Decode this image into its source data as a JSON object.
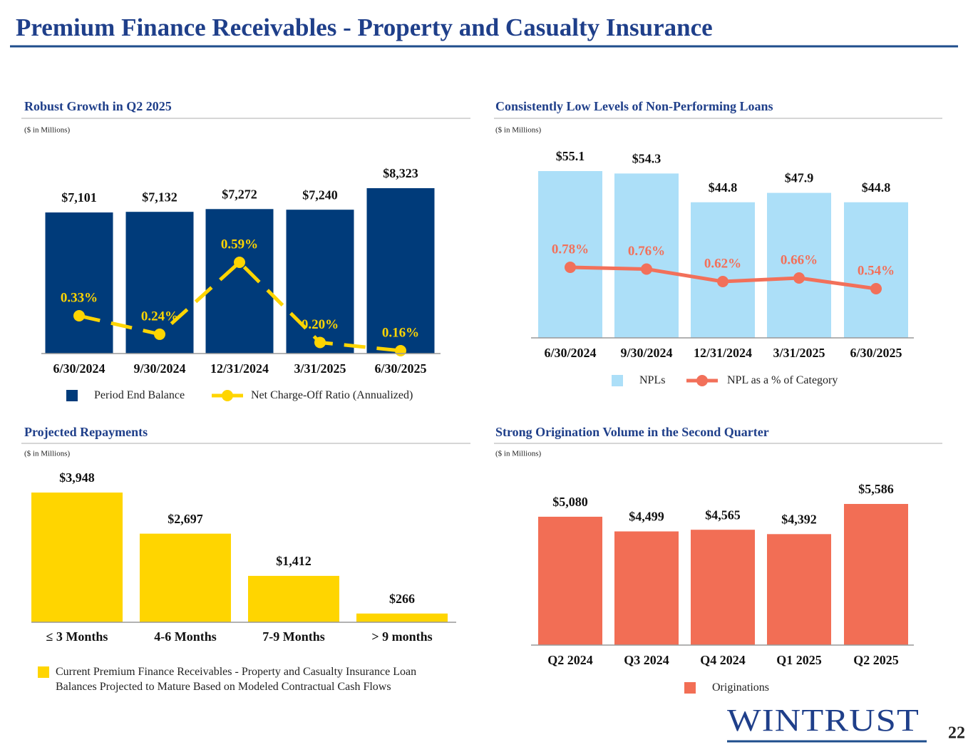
{
  "title": "Premium Finance Receivables - Property and Casualty Insurance",
  "chart_data": [
    {
      "type": "bar_line",
      "title": "Robust Growth in Q2 2025",
      "subtitle": "($ in Millions)",
      "categories": [
        "6/30/2024",
        "9/30/2024",
        "12/31/2024",
        "3/31/2025",
        "6/30/2025"
      ],
      "series": [
        {
          "name": "Period End Balance",
          "color": "#003b7a",
          "values": [
            7101,
            7132,
            7272,
            7240,
            8323
          ],
          "value_labels": [
            "$7,101",
            "$7,132",
            "$7,272",
            "$7,240",
            "$8,323"
          ]
        },
        {
          "name": "Net Charge-Off Ratio (Annualized)",
          "color": "#ffd500",
          "axis": "y2",
          "values": [
            0.33,
            0.24,
            0.59,
            0.2,
            0.16
          ],
          "value_labels": [
            "0.33%",
            "0.24%",
            "0.59%",
            "0.20%",
            "0.16%"
          ]
        }
      ]
    },
    {
      "type": "bar_line",
      "title": "Consistently Low Levels of Non-Performing Loans",
      "subtitle": "($ in Millions)",
      "categories": [
        "6/30/2024",
        "9/30/2024",
        "12/31/2024",
        "3/31/2025",
        "6/30/2025"
      ],
      "series": [
        {
          "name": "NPLs",
          "color": "#acdff8",
          "values": [
            55.1,
            54.3,
            44.8,
            47.9,
            44.8
          ],
          "value_labels": [
            "$55.1",
            "$54.3",
            "$44.8",
            "$47.9",
            "$44.8"
          ]
        },
        {
          "name": "NPL as a % of Category",
          "color": "#f2705a",
          "axis": "y2",
          "values": [
            0.78,
            0.76,
            0.62,
            0.66,
            0.54
          ],
          "value_labels": [
            "0.78%",
            "0.76%",
            "0.62%",
            "0.66%",
            "0.54%"
          ]
        }
      ]
    },
    {
      "type": "bar",
      "title": "Projected Repayments",
      "subtitle": "($ in Millions)",
      "categories": [
        "≤ 3 Months",
        "4-6 Months",
        "7-9 Months",
        "> 9 months"
      ],
      "series": [
        {
          "name": "Current Premium Finance Receivables - Property and Casualty Insurance Loan Balances Projected to Mature Based on Modeled Contractual Cash Flows",
          "color": "#ffd500",
          "values": [
            3948,
            2697,
            1412,
            266
          ],
          "value_labels": [
            "$3,948",
            "$2,697",
            "$1,412",
            "$266"
          ]
        }
      ]
    },
    {
      "type": "bar",
      "title": "Strong Origination Volume in the Second Quarter",
      "subtitle": "($ in Millions)",
      "categories": [
        "Q2 2024",
        "Q3 2024",
        "Q4 2024",
        "Q1 2025",
        "Q2 2025"
      ],
      "series": [
        {
          "name": "Originations",
          "color": "#f26e55",
          "values": [
            5080,
            4499,
            4565,
            4392,
            5586
          ],
          "value_labels": [
            "$5,080",
            "$4,499",
            "$4,565",
            "$4,392",
            "$5,586"
          ]
        }
      ]
    }
  ],
  "logo": "WINTRUST",
  "page_number": "22"
}
